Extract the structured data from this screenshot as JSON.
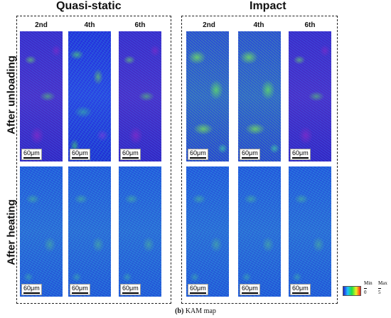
{
  "groups": [
    {
      "title": "Quasi-static",
      "columns": [
        "2nd",
        "4th",
        "6th"
      ]
    },
    {
      "title": "Impact",
      "columns": [
        "2nd",
        "4th",
        "6th"
      ]
    }
  ],
  "rows": [
    "After unloading",
    "After heating"
  ],
  "scalebar_label": "60μm",
  "legend": {
    "min_label": "Min",
    "min_value": "0",
    "max_label": "Max",
    "max_value": "5",
    "colors": [
      "#2020d0",
      "#20c0ff",
      "#20e040",
      "#f0f020",
      "#ff2020"
    ]
  },
  "caption": {
    "prefix": "(b)",
    "text": "KAM map"
  }
}
